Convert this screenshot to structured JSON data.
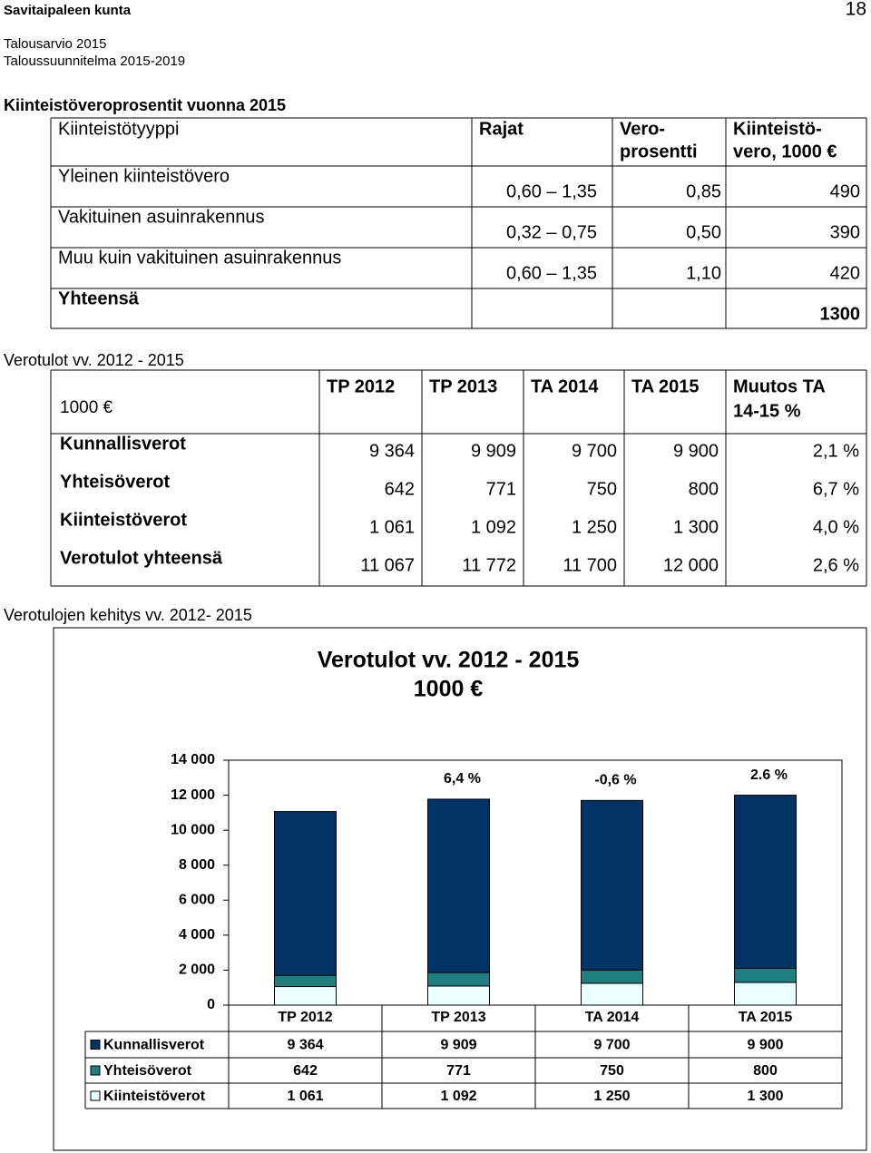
{
  "header": {
    "org": "Savitaipaleen kunta",
    "page": "18",
    "lines": [
      "Talousarvio 2015",
      "Taloussuunnitelma 2015-2019"
    ]
  },
  "table1": {
    "title": "Kiinteistöveroprosentit vuonna 2015",
    "header": [
      [
        "Kiinteistötyyppi"
      ],
      [
        "Rajat"
      ],
      [
        "Vero-",
        "prosentti"
      ],
      [
        "Kiinteistö-",
        "vero, 1000 €"
      ]
    ],
    "rows": [
      [
        "Yleinen kiinteistövero",
        "0,60 – 1,35",
        "0,85",
        "490"
      ],
      [
        "Vakituinen asuinrakennus",
        "0,32 – 0,75",
        "0,50",
        "390"
      ],
      [
        "Muu kuin vakituinen asuinrakennus",
        "0,60 – 1,35",
        "1,10",
        "420"
      ]
    ],
    "total": {
      "label": "Yhteensä",
      "value": "1300"
    }
  },
  "table2": {
    "title": "Verotulot vv. 2012 - 2015",
    "unit": "1000 €",
    "header": [
      [
        "TP 2012"
      ],
      [
        "TP 2013"
      ],
      [
        "TA 2014"
      ],
      [
        "TA 2015"
      ],
      [
        "Muutos TA",
        "14-15 %"
      ]
    ],
    "rows": [
      {
        "label": "Kunnallisverot",
        "values": [
          "9 364",
          "9 909",
          "9 700",
          "9 900",
          "2,1 %"
        ]
      },
      {
        "label": "Yhteisöverot",
        "values": [
          "642",
          "771",
          "750",
          "800",
          "6,7 %"
        ]
      },
      {
        "label": "Kiinteistöverot",
        "values": [
          "1 061",
          "1 092",
          "1 250",
          "1 300",
          "4,0 %"
        ]
      },
      {
        "label": "Verotulot yhteensä",
        "values": [
          "11 067",
          "11 772",
          "11 700",
          "12 000",
          "2,6 %"
        ]
      }
    ]
  },
  "chart_heading": "Verotulojen kehitys vv. 2012- 2015",
  "chart_data": {
    "type": "stacked_bar",
    "title": "Verotulot vv. 2012 - 2015",
    "subtitle": "1000 €",
    "categories": [
      "TP 2012",
      "TP 2013",
      "TA 2014",
      "TA 2015"
    ],
    "series": [
      {
        "name": "Kunnallisverot",
        "color": "#003366",
        "values": [
          9364,
          9909,
          9700,
          9900
        ],
        "value_labels": [
          "9 364",
          "9 909",
          "9 700",
          "9 900"
        ]
      },
      {
        "name": "Yhteisöverot",
        "color": "#1f7f80",
        "values": [
          642,
          771,
          750,
          800
        ],
        "value_labels": [
          "642",
          "771",
          "750",
          "800"
        ]
      },
      {
        "name": "Kiinteistöverot",
        "color": "#eaffff",
        "values": [
          1061,
          1092,
          1250,
          1300
        ],
        "value_labels": [
          "1 061",
          "1 092",
          "1 250",
          "1 300"
        ]
      }
    ],
    "annotations": [
      null,
      "6,4 %",
      "-0,6 %",
      "2.6 %"
    ],
    "ylim": [
      0,
      14000
    ],
    "yticks": [
      0,
      {
        "value": 2000,
        "label": "2 000"
      },
      {
        "value": 4000,
        "label": "4 000"
      },
      {
        "value": 6000,
        "label": "6 000"
      },
      {
        "value": 8000,
        "label": "8 000"
      },
      {
        "value": 10000,
        "label": "10 000"
      },
      {
        "value": 12000,
        "label": "12 000"
      },
      {
        "value": 14000,
        "label": "14 000"
      }
    ]
  }
}
